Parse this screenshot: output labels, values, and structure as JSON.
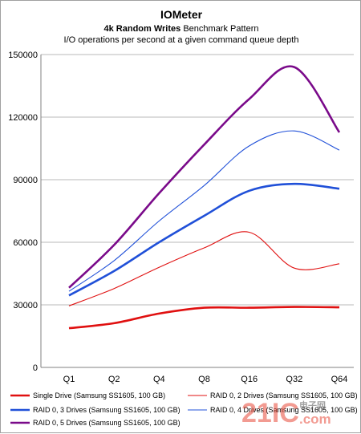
{
  "chart_data": {
    "type": "line",
    "title": "IOMeter",
    "subtitle_bold": "4k Random Writes",
    "subtitle_rest": " Benchmark Pattern",
    "caption": "I/O operations per second at a given command queue depth",
    "categories": [
      "Q1",
      "Q2",
      "Q4",
      "Q8",
      "Q16",
      "Q32",
      "Q64"
    ],
    "ylim": [
      0,
      150000
    ],
    "yticks": [
      {
        "value": 0,
        "label": "0"
      },
      {
        "value": 30000,
        "label": "30000"
      },
      {
        "value": 60000,
        "label": "60000"
      },
      {
        "value": 90000,
        "label": "90000"
      },
      {
        "value": 120000,
        "label": "120000"
      },
      {
        "value": 150000,
        "label": "150000"
      }
    ],
    "grid": true,
    "legend_position": "bottom",
    "series": [
      {
        "name": "Single Drive (Samsung SS1605, 100 GB)",
        "color": "#e01010",
        "weight": "thick",
        "values": [
          18800,
          21200,
          25800,
          28600,
          28600,
          29000,
          28800
        ]
      },
      {
        "name": "RAID 0, 2 Drives (Samsung SS1605, 100 GB)",
        "color": "#e01010",
        "weight": "thin",
        "values": [
          29500,
          37800,
          48000,
          57300,
          64800,
          47600,
          49700
        ]
      },
      {
        "name": "RAID 0, 3 Drives (Samsung SS1605, 100 GB)",
        "color": "#2050d8",
        "weight": "thick",
        "values": [
          34500,
          46200,
          60000,
          72700,
          84700,
          88000,
          85700
        ]
      },
      {
        "name": "RAID 0, 4 Drives (Samsung SS1605, 100 GB)",
        "color": "#2050d8",
        "weight": "thin",
        "values": [
          36500,
          51200,
          70200,
          87200,
          106200,
          113400,
          104200
        ]
      },
      {
        "name": "RAID 0, 5 Drives (Samsung SS1605, 100 GB)",
        "color": "#7a0a8a",
        "weight": "thick",
        "values": [
          38200,
          58700,
          83500,
          106800,
          128700,
          144000,
          112700
        ]
      }
    ]
  },
  "watermark": {
    "main": "21IC",
    "sub": "电子网",
    "domain": ".com"
  }
}
